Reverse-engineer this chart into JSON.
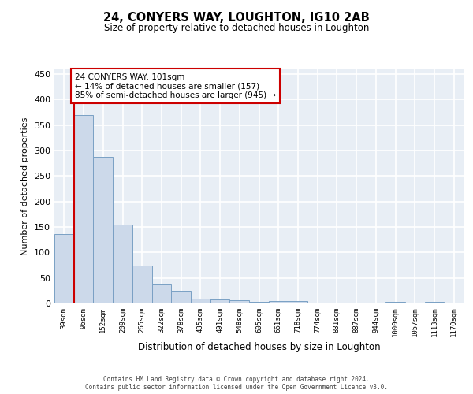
{
  "title1": "24, CONYERS WAY, LOUGHTON, IG10 2AB",
  "title2": "Size of property relative to detached houses in Loughton",
  "xlabel": "Distribution of detached houses by size in Loughton",
  "ylabel": "Number of detached properties",
  "bar_labels": [
    "39sqm",
    "96sqm",
    "152sqm",
    "209sqm",
    "265sqm",
    "322sqm",
    "378sqm",
    "435sqm",
    "491sqm",
    "548sqm",
    "605sqm",
    "661sqm",
    "718sqm",
    "774sqm",
    "831sqm",
    "887sqm",
    "944sqm",
    "1000sqm",
    "1057sqm",
    "1113sqm",
    "1170sqm"
  ],
  "bar_values": [
    136,
    370,
    288,
    155,
    74,
    37,
    25,
    10,
    8,
    6,
    3,
    5,
    5,
    0,
    0,
    0,
    0,
    3,
    0,
    3,
    0
  ],
  "bar_color": "#ccd9ea",
  "bar_edge_color": "#7aa0c4",
  "vline_color": "#cc0000",
  "vline_x": 0.5,
  "annotation_line1": "24 CONYERS WAY: 101sqm",
  "annotation_line2": "← 14% of detached houses are smaller (157)",
  "annotation_line3": "85% of semi-detached houses are larger (945) →",
  "ann_box_fc": "#ffffff",
  "ann_box_ec": "#cc0000",
  "ylim": [
    0,
    460
  ],
  "yticks": [
    0,
    50,
    100,
    150,
    200,
    250,
    300,
    350,
    400,
    450
  ],
  "bg_color": "#e8eef5",
  "grid_color": "#ffffff",
  "footer1": "Contains HM Land Registry data © Crown copyright and database right 2024.",
  "footer2": "Contains public sector information licensed under the Open Government Licence v3.0."
}
